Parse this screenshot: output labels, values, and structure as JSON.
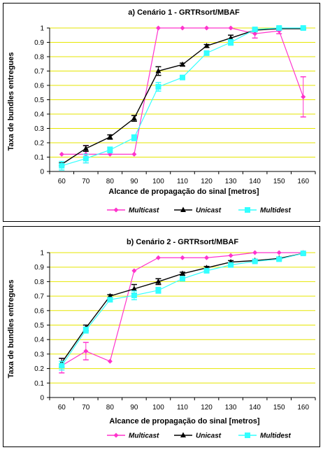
{
  "chart_data": [
    {
      "type": "line",
      "title": "a) Cenário 1 - GRTRsort/MBAF",
      "xlabel": "Alcance de propagação do sinal [metros]",
      "ylabel": "Taxa de bundles entregues",
      "x": [
        60,
        70,
        80,
        90,
        100,
        110,
        120,
        130,
        140,
        150,
        160
      ],
      "ylim": [
        0,
        1
      ],
      "yticks": [
        "0",
        "0.1",
        "0.2",
        "0.3",
        "0.4",
        "0.5",
        "0.6",
        "0.7",
        "0.8",
        "0.9",
        "1"
      ],
      "grid": "horizontal",
      "legend": "bottom",
      "series": [
        {
          "name": "Multicast",
          "color": "#ff33cc",
          "marker": "diamond",
          "values": [
            0.12,
            0.12,
            0.12,
            0.12,
            1.0,
            1.0,
            1.0,
            1.0,
            0.96,
            0.98,
            0.52
          ],
          "err": [
            0.0,
            0.06,
            0.0,
            0.0,
            0.0,
            0.0,
            0.0,
            0.0,
            0.03,
            0.02,
            0.14
          ]
        },
        {
          "name": "Unicast",
          "color": "#000000",
          "marker": "triangle",
          "values": [
            0.05,
            0.16,
            0.24,
            0.37,
            0.7,
            0.745,
            0.875,
            0.93,
            0.985,
            0.995,
            0.995
          ],
          "err": [
            0.01,
            0.02,
            0.015,
            0.02,
            0.03,
            0.01,
            0.01,
            0.02,
            0.01,
            0.01,
            0.005
          ]
        },
        {
          "name": "Multidest",
          "color": "#33ffff",
          "marker": "square",
          "values": [
            0.04,
            0.09,
            0.15,
            0.235,
            0.59,
            0.655,
            0.825,
            0.9,
            0.99,
            1.0,
            1.0
          ],
          "err": [
            0.03,
            0.03,
            0.02,
            0.02,
            0.03,
            0.01,
            0.01,
            0.02,
            0.01,
            0.005,
            0.005
          ]
        }
      ]
    },
    {
      "type": "line",
      "title": "b) Cenário  2 - GRTRsort/MBAF",
      "xlabel": "Alcance de propagação do sinal [metros]",
      "ylabel": "Taxa de bundles entregues",
      "x": [
        60,
        70,
        80,
        90,
        100,
        110,
        120,
        130,
        140,
        150,
        160
      ],
      "ylim": [
        0,
        1
      ],
      "yticks": [
        "0",
        "0.1",
        "0.2",
        "0.3",
        "0.4",
        "0.5",
        "0.6",
        "0.7",
        "0.8",
        "0.9",
        "1"
      ],
      "grid": "horizontal",
      "legend": "bottom",
      "series": [
        {
          "name": "Multicast",
          "color": "#ff33cc",
          "marker": "diamond",
          "values": [
            0.22,
            0.32,
            0.25,
            0.875,
            0.965,
            0.965,
            0.965,
            0.98,
            1.0,
            1.0,
            1.0
          ],
          "err": [
            0.05,
            0.06,
            0.0,
            0.0,
            0.0,
            0.0,
            0.0,
            0.0,
            0.0,
            0.0,
            0.0
          ]
        },
        {
          "name": "Unicast",
          "color": "#000000",
          "marker": "triangle",
          "values": [
            0.24,
            0.48,
            0.7,
            0.75,
            0.8,
            0.855,
            0.895,
            0.935,
            0.945,
            0.96,
            0.995
          ],
          "err": [
            0.03,
            0.02,
            0.01,
            0.03,
            0.02,
            0.01,
            0.01,
            0.01,
            0.005,
            0.005,
            0.005
          ]
        },
        {
          "name": "Multidest",
          "color": "#33ffff",
          "marker": "square",
          "values": [
            0.22,
            0.465,
            0.675,
            0.705,
            0.74,
            0.82,
            0.875,
            0.915,
            0.94,
            0.955,
            0.995
          ],
          "err": [
            0.03,
            0.02,
            0.01,
            0.03,
            0.02,
            0.01,
            0.01,
            0.01,
            0.005,
            0.005,
            0.005
          ]
        }
      ]
    }
  ]
}
